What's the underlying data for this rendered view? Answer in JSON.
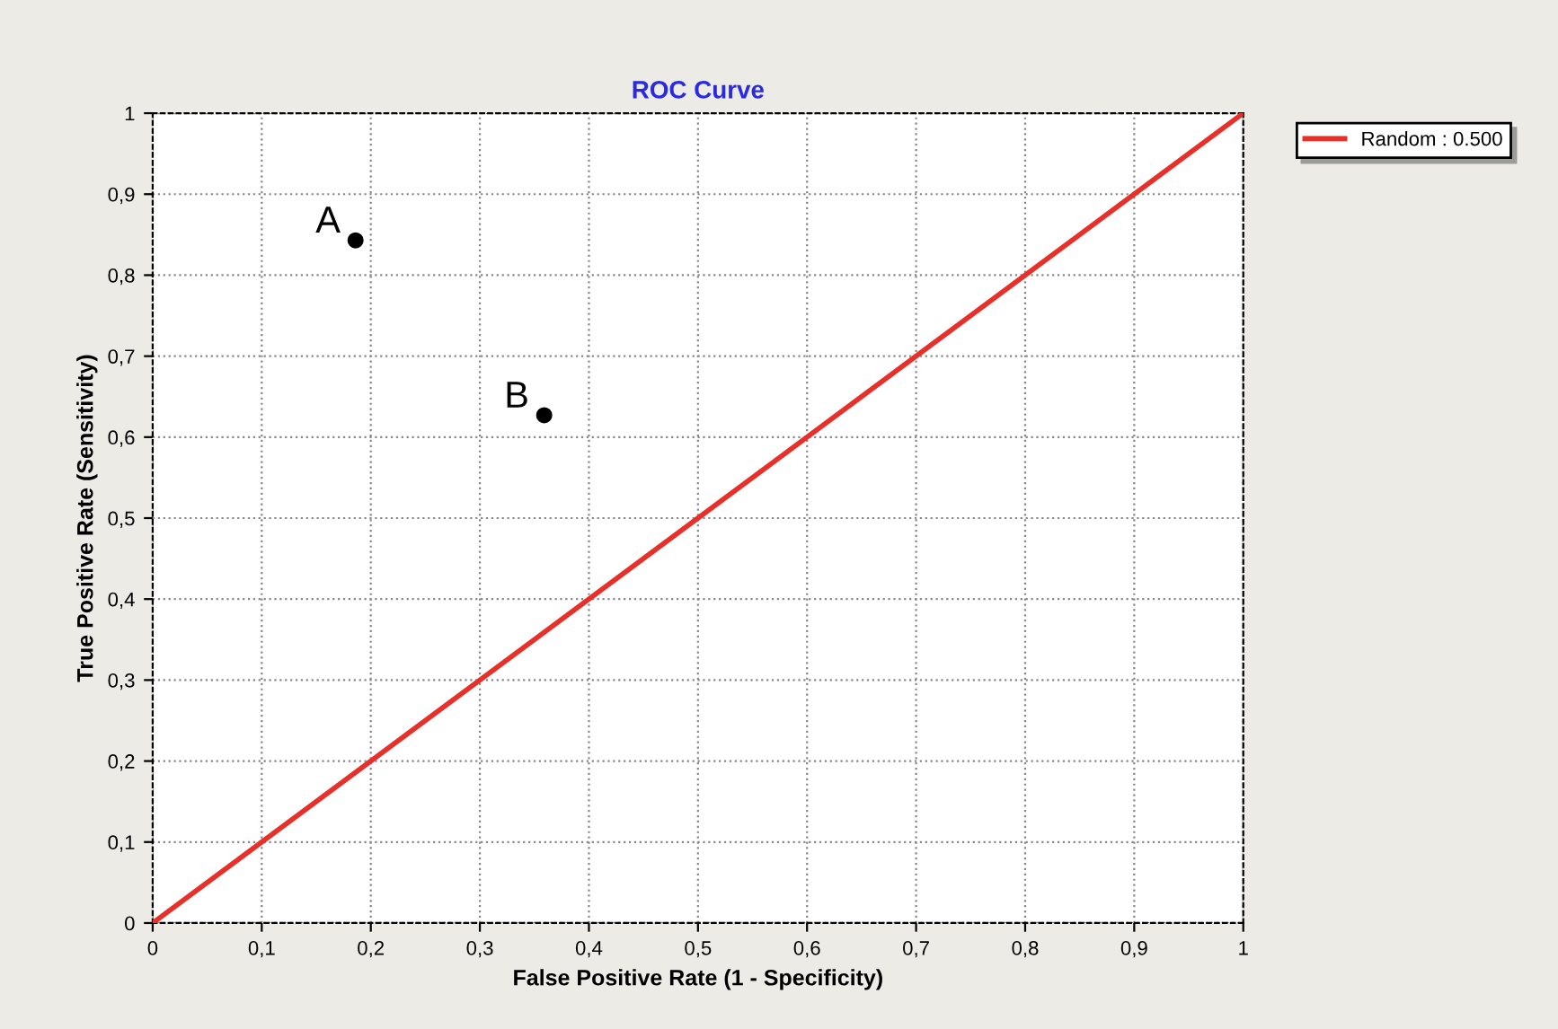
{
  "chart_data": {
    "type": "line",
    "title": "ROC Curve",
    "xlabel": "False Positive Rate (1 - Specificity)",
    "ylabel": "True Positive Rate (Sensitivity)",
    "series": [
      {
        "name": "Random : 0.500",
        "color": "#e8302a",
        "x": [
          0,
          1
        ],
        "values": [
          0,
          1
        ],
        "marker": "none"
      },
      {
        "type": "scatter",
        "color": "#000000",
        "x": [
          0.186,
          0.359
        ],
        "values": [
          0.843,
          0.627
        ],
        "marker": "circle"
      }
    ],
    "annotations": [
      {
        "text": "A",
        "x": 0.186,
        "y": 0.843
      },
      {
        "text": "B",
        "x": 0.359,
        "y": 0.627
      }
    ],
    "xlim": [
      0,
      1
    ],
    "ylim": [
      0,
      1
    ],
    "xticks": [
      0,
      {
        "value": 0.1,
        "label": "0,1"
      },
      {
        "value": 0.2,
        "label": "0,2"
      },
      {
        "value": 0.3,
        "label": "0,3"
      },
      {
        "value": 0.4,
        "label": "0,4"
      },
      {
        "value": 0.5,
        "label": "0,5"
      },
      {
        "value": 0.6,
        "label": "0,6"
      },
      {
        "value": 0.7,
        "label": "0,7"
      },
      {
        "value": 0.8,
        "label": "0,8"
      },
      {
        "value": 0.9,
        "label": "0,9"
      },
      1
    ],
    "yticks": [
      0,
      {
        "value": 0.1,
        "label": "0,1"
      },
      {
        "value": 0.2,
        "label": "0,2"
      },
      {
        "value": 0.3,
        "label": "0,3"
      },
      {
        "value": 0.4,
        "label": "0,4"
      },
      {
        "value": 0.5,
        "label": "0,5"
      },
      {
        "value": 0.6,
        "label": "0,6"
      },
      {
        "value": 0.7,
        "label": "0,7"
      },
      {
        "value": 0.8,
        "label": "0,8"
      },
      {
        "value": 0.9,
        "label": "0,9"
      },
      1
    ],
    "grid": true,
    "legend": "top right"
  }
}
